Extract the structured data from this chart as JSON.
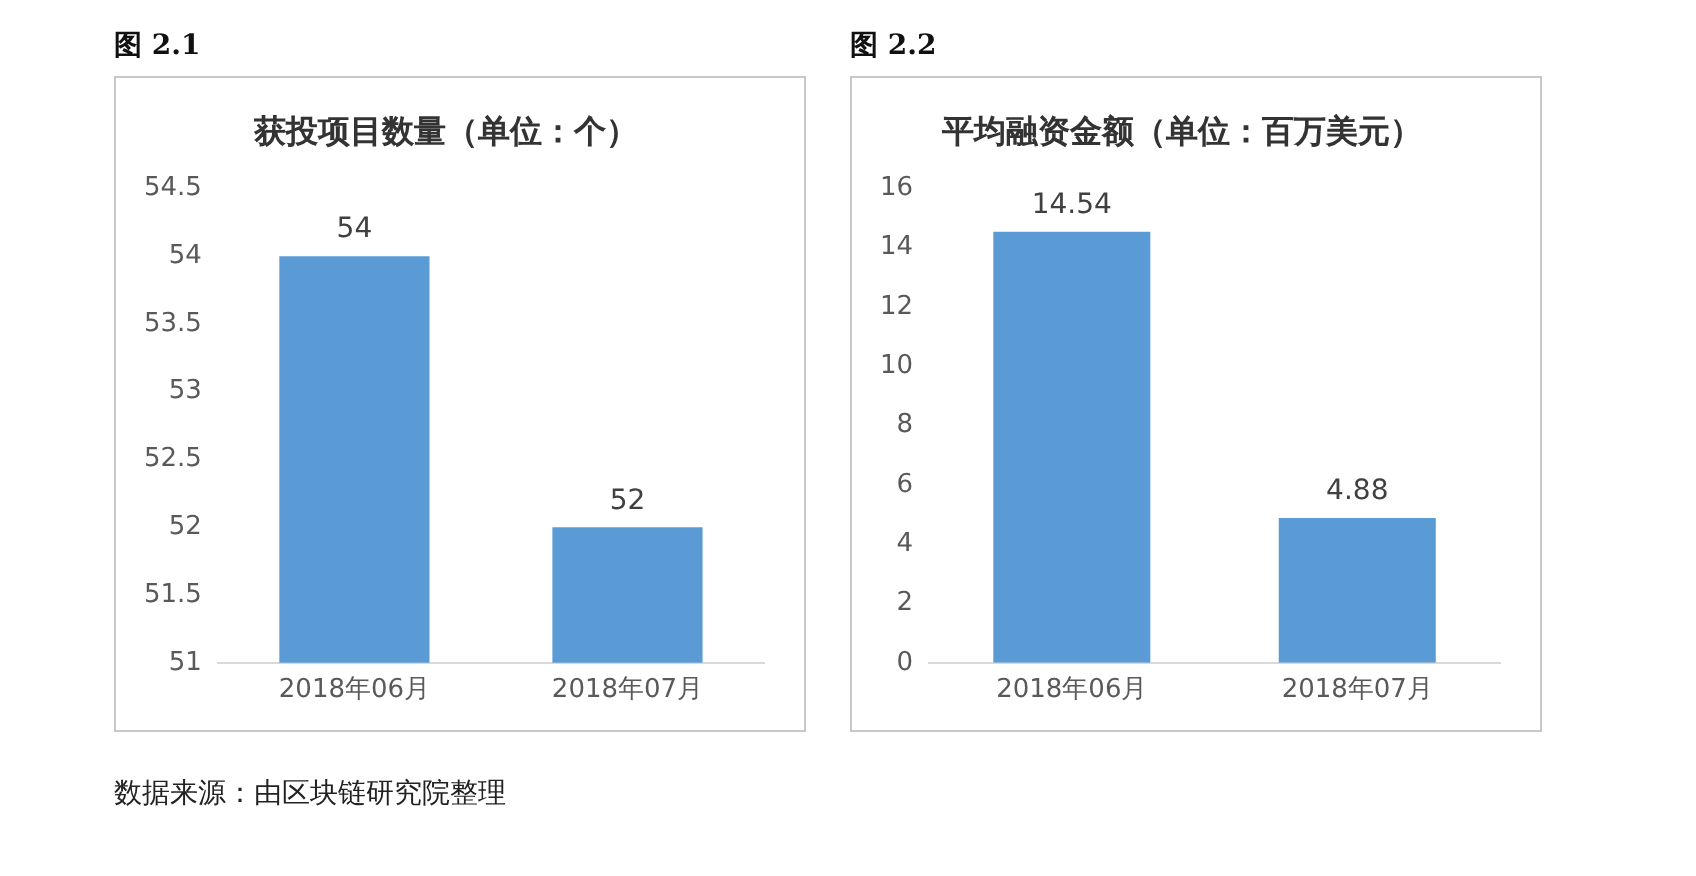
{
  "chart_data": [
    {
      "type": "bar",
      "title": "获投项目数量（单位：个）",
      "categories": [
        "2018年06月",
        "2018年07月"
      ],
      "values": [
        54,
        52
      ],
      "color": "#5b9bd5",
      "ylim": [
        51,
        54.5
      ],
      "yticks": [
        51,
        51.5,
        52,
        52.5,
        53,
        53.5,
        54,
        54.5
      ],
      "grid": false,
      "legend": false,
      "data_labels": true,
      "annotations": [
        "图 2.1",
        "数据来源：由区块链研究院整理"
      ]
    },
    {
      "type": "bar",
      "title": "平均融资金额（单位：百万美元）",
      "categories": [
        "2018年06月",
        "2018年07月"
      ],
      "values": [
        14.54,
        4.88
      ],
      "color": "#5b9bd5",
      "ylim": [
        0,
        16
      ],
      "yticks": [
        0,
        2,
        4,
        6,
        8,
        10,
        12,
        14,
        16
      ],
      "grid": false,
      "legend": false,
      "data_labels": true,
      "annotations": [
        "图 2.2"
      ]
    }
  ]
}
